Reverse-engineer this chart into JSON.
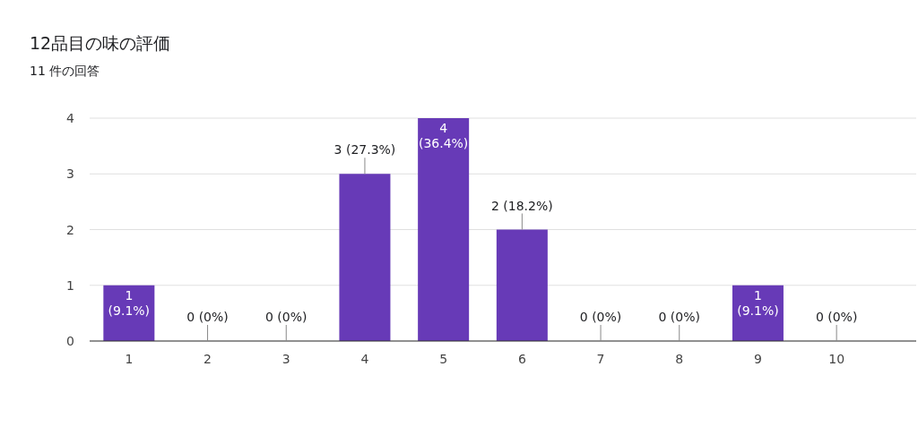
{
  "chart_data": {
    "type": "bar",
    "title": "12品目の味の評価",
    "subtitle": "11 件の回答",
    "categories": [
      "1",
      "2",
      "3",
      "4",
      "5",
      "6",
      "7",
      "8",
      "9",
      "10"
    ],
    "values": [
      1,
      0,
      0,
      3,
      4,
      2,
      0,
      0,
      1,
      0
    ],
    "value_labels": [
      "1 (9.1%)",
      "0 (0%)",
      "0 (0%)",
      "3 (27.3%)",
      "4 (36.4%)",
      "2 (18.2%)",
      "0 (0%)",
      "0 (0%)",
      "1 (9.1%)",
      "0 (0%)"
    ],
    "color": "#673ab7",
    "ylim": [
      0,
      4
    ],
    "yticks": [
      0,
      1,
      2,
      3,
      4
    ],
    "grid": "y"
  }
}
